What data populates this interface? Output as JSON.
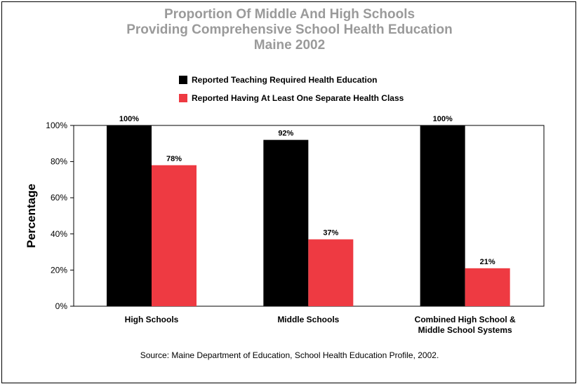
{
  "title": {
    "line1": "Proportion Of Middle And High Schools",
    "line2": "Providing Comprehensive School Health Education",
    "line3": "Maine 2002"
  },
  "source": "Source: Maine Department of Education, School Health Education Profile, 2002.",
  "colors": {
    "series1": "#000000",
    "series2": "#ee3a42",
    "title": "#9a9a9a"
  },
  "chart_data": {
    "type": "bar",
    "title": "Proportion Of Middle And High Schools Providing Comprehensive School Health Education Maine 2002",
    "xlabel": "",
    "ylabel": "Percentage",
    "ylim": [
      0,
      100
    ],
    "yticks": [
      "0%",
      "20%",
      "40%",
      "60%",
      "80%",
      "100%"
    ],
    "grid": false,
    "legend_position": "top",
    "categories": [
      [
        "High Schools"
      ],
      [
        "Middle Schools"
      ],
      [
        "Combined High School &",
        "Middle School Systems"
      ]
    ],
    "series": [
      {
        "name": "Reported Teaching Required Health Education",
        "values": [
          100,
          92,
          100
        ],
        "labels": [
          "100%",
          "92%",
          "100%"
        ]
      },
      {
        "name": "Reported Having At Least One Separate Health Class",
        "values": [
          78,
          37,
          21
        ],
        "labels": [
          "78%",
          "37%",
          "21%"
        ]
      }
    ]
  }
}
